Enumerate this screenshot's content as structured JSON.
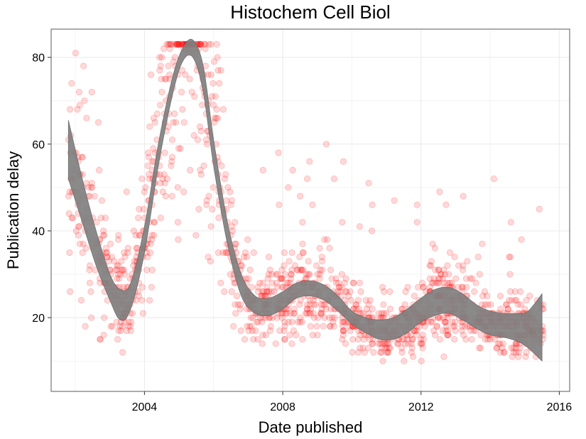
{
  "chart_data": {
    "type": "scatter",
    "title": "Histochem Cell Biol",
    "xlabel": "Date published",
    "ylabel": "Publication delay",
    "xlim": [
      2001.3,
      2016.3
    ],
    "ylim": [
      3,
      86.5
    ],
    "x_ticks": [
      2004,
      2008,
      2012,
      2016
    ],
    "x_tick_labels": [
      "2004",
      "2008",
      "2012",
      "2016"
    ],
    "y_ticks": [
      20,
      40,
      60,
      80
    ],
    "y_tick_labels": [
      "20",
      "40",
      "60",
      "80"
    ],
    "grid": true,
    "legend": "none",
    "colors": {
      "points_fill": "#ff0000",
      "points_opacity": 0.15,
      "band": "#808080",
      "panel_border": "#7f7f7f",
      "grid": "#ebebeb"
    },
    "smooth_band": {
      "x": [
        2001.8,
        2002.2,
        2002.6,
        2003.0,
        2003.3,
        2003.6,
        2004.0,
        2004.4,
        2004.8,
        2005.1,
        2005.4,
        2005.7,
        2006.0,
        2006.4,
        2006.8,
        2007.2,
        2007.6,
        2008.0,
        2008.4,
        2008.8,
        2009.2,
        2009.6,
        2010.0,
        2010.4,
        2010.8,
        2011.2,
        2011.6,
        2012.0,
        2012.4,
        2012.8,
        2013.2,
        2013.6,
        2014.0,
        2014.4,
        2014.8,
        2015.1,
        2015.5
      ],
      "lower": [
        52,
        42,
        32,
        24,
        19.5,
        22,
        35,
        55,
        71,
        79,
        80,
        72,
        55,
        37,
        25,
        21,
        20.5,
        22,
        24.5,
        25,
        24,
        21.5,
        18.5,
        16.5,
        15,
        15,
        16.5,
        19,
        20.5,
        21,
        19.5,
        17.5,
        16,
        15.5,
        14.5,
        13,
        10
      ],
      "upper": [
        65.5,
        52,
        40,
        30,
        26.5,
        28,
        41,
        60,
        75,
        82,
        84,
        78,
        61,
        42,
        30,
        25,
        24.5,
        26,
        28,
        28.5,
        27.5,
        25,
        21.5,
        20,
        19.5,
        20,
        22,
        24.5,
        26.5,
        27,
        25.5,
        23,
        21.5,
        21,
        21,
        21.5,
        25.5
      ]
    }
  }
}
